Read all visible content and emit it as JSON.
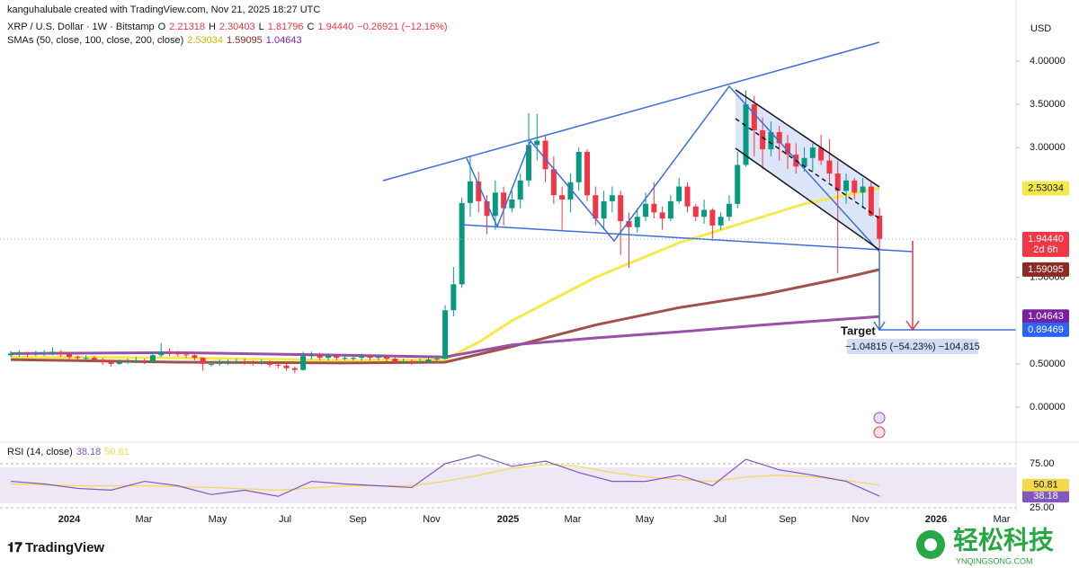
{
  "header": {
    "credit": "kanguhalubale created with TradingView.com, Nov 21, 2025 18:27 UTC",
    "symbol": "XRP / U.S. Dollar · 1W · Bitstamp",
    "ohlc": [
      {
        "label": "O",
        "value": "2.21318"
      },
      {
        "label": "H",
        "value": "2.30403"
      },
      {
        "label": "L",
        "value": "1.81796"
      },
      {
        "label": "C",
        "value": "1.94440"
      }
    ],
    "change": "−0.26921 (−12.16%)",
    "sma_title": "SMAs (50, close, 100, close, 200, close)",
    "currency": "USD"
  },
  "annotations": {
    "target": "Target",
    "measure": "−1.04815 (−54.23%) −104,815"
  },
  "footer": {
    "brand": "TradingView",
    "watermark": "轻松科技",
    "watermark_url": "YNQINGSONG.COM"
  },
  "chart_data": {
    "type": "candlestick",
    "ylim": [
      -0.384,
      4.706
    ],
    "yticks": [
      {
        "value": 4,
        "label": "4.00000"
      },
      {
        "value": 3.5,
        "label": "3.50000"
      },
      {
        "value": 3,
        "label": "3.00000"
      },
      {
        "value": 1.5,
        "label": "1.50000"
      },
      {
        "value": 0.5,
        "label": "0.50000"
      },
      {
        "value": 0,
        "label": "0.00000"
      }
    ],
    "x_labels": [
      "2024",
      "Mar",
      "May",
      "Jul",
      "Sep",
      "Nov",
      "2025",
      "Mar",
      "May",
      "Jul",
      "Sep",
      "Nov",
      "2026",
      "Mar"
    ],
    "up_color": "#089981",
    "down_color": "#f23645",
    "open": [
      0.6,
      0.62,
      0.62,
      0.61,
      0.62,
      0.62,
      0.64,
      0.61,
      0.58,
      0.57,
      0.57,
      0.55,
      0.52,
      0.5,
      0.52,
      0.53,
      0.54,
      0.53,
      0.6,
      0.64,
      0.63,
      0.61,
      0.6,
      0.57,
      0.5,
      0.5,
      0.52,
      0.52,
      0.53,
      0.52,
      0.51,
      0.52,
      0.49,
      0.48,
      0.45,
      0.43,
      0.59,
      0.6,
      0.57,
      0.59,
      0.57,
      0.57,
      0.57,
      0.59,
      0.57,
      0.58,
      0.56,
      0.53,
      0.53,
      0.52,
      0.53,
      0.55,
      0.56,
      1.12,
      1.42,
      2.36,
      2.61,
      2.38,
      2.21,
      2.48,
      2.3,
      2.4,
      2.62,
      3.03,
      3.08,
      2.75,
      2.45,
      2.4,
      2.6,
      2.95,
      2.45,
      2.18,
      2.38,
      2.45,
      2.15,
      2.08,
      2.2,
      2.35,
      2.25,
      2.18,
      2.38,
      2.55,
      2.32,
      2.2,
      2.28,
      2.1,
      2.2,
      2.35,
      2.8,
      3.5,
      3.2,
      2.98,
      3.18,
      3.05,
      2.92,
      2.78,
      2.88,
      3.0,
      2.85,
      2.7,
      2.5,
      2.62,
      2.48,
      2.55,
      2.21318
    ],
    "high": [
      0.65,
      0.66,
      0.64,
      0.65,
      0.66,
      0.69,
      0.66,
      0.63,
      0.6,
      0.6,
      0.59,
      0.57,
      0.54,
      0.55,
      0.56,
      0.58,
      0.56,
      0.64,
      0.74,
      0.68,
      0.65,
      0.63,
      0.62,
      0.58,
      0.53,
      0.55,
      0.55,
      0.56,
      0.56,
      0.54,
      0.55,
      0.54,
      0.51,
      0.5,
      0.47,
      0.64,
      0.64,
      0.63,
      0.62,
      0.61,
      0.61,
      0.61,
      0.62,
      0.61,
      0.61,
      0.6,
      0.58,
      0.56,
      0.55,
      0.56,
      0.58,
      0.6,
      1.18,
      1.62,
      2.42,
      2.91,
      2.72,
      2.45,
      2.62,
      2.55,
      2.5,
      2.7,
      3.4,
      3.39,
      3.15,
      2.9,
      2.55,
      2.7,
      3.0,
      2.98,
      2.55,
      2.5,
      2.55,
      2.5,
      2.25,
      2.3,
      2.48,
      2.6,
      2.32,
      2.45,
      2.65,
      2.6,
      2.35,
      2.4,
      2.3,
      2.25,
      2.45,
      2.95,
      3.66,
      3.6,
      3.35,
      3.3,
      3.25,
      3.15,
      3.05,
      3.0,
      3.05,
      3.15,
      3.1,
      2.85,
      2.7,
      2.65,
      2.65,
      2.6,
      2.30403
    ],
    "low": [
      0.58,
      0.58,
      0.58,
      0.59,
      0.59,
      0.6,
      0.58,
      0.55,
      0.54,
      0.54,
      0.52,
      0.49,
      0.47,
      0.49,
      0.5,
      0.51,
      0.5,
      0.51,
      0.58,
      0.59,
      0.58,
      0.57,
      0.54,
      0.42,
      0.47,
      0.48,
      0.49,
      0.5,
      0.49,
      0.48,
      0.49,
      0.46,
      0.45,
      0.42,
      0.39,
      0.42,
      0.55,
      0.54,
      0.54,
      0.54,
      0.54,
      0.54,
      0.54,
      0.54,
      0.54,
      0.53,
      0.5,
      0.5,
      0.49,
      0.5,
      0.51,
      0.53,
      0.55,
      1.05,
      1.38,
      2.2,
      2.25,
      2.0,
      2.05,
      2.1,
      2.25,
      2.3,
      2.55,
      2.85,
      2.6,
      2.35,
      2.05,
      2.25,
      2.5,
      2.38,
      2.1,
      2.05,
      2.25,
      1.76,
      1.61,
      2.02,
      2.15,
      2.18,
      2.05,
      2.15,
      2.35,
      2.25,
      2.15,
      2.12,
      1.92,
      2.05,
      2.15,
      2.3,
      2.78,
      2.9,
      2.75,
      2.9,
      2.85,
      2.75,
      2.7,
      2.72,
      2.72,
      2.8,
      2.6,
      1.55,
      2.35,
      2.4,
      2.3,
      2.2,
      1.81796
    ],
    "close": [
      0.62,
      0.62,
      0.61,
      0.62,
      0.62,
      0.64,
      0.61,
      0.58,
      0.57,
      0.57,
      0.55,
      0.52,
      0.5,
      0.52,
      0.53,
      0.54,
      0.53,
      0.6,
      0.64,
      0.63,
      0.61,
      0.6,
      0.57,
      0.5,
      0.5,
      0.52,
      0.52,
      0.53,
      0.52,
      0.51,
      0.52,
      0.49,
      0.48,
      0.45,
      0.43,
      0.59,
      0.6,
      0.57,
      0.59,
      0.57,
      0.57,
      0.57,
      0.59,
      0.57,
      0.58,
      0.56,
      0.53,
      0.53,
      0.52,
      0.53,
      0.55,
      0.56,
      1.12,
      1.42,
      2.36,
      2.61,
      2.38,
      2.21,
      2.48,
      2.3,
      2.4,
      2.62,
      3.03,
      3.08,
      2.75,
      2.45,
      2.4,
      2.6,
      2.95,
      2.45,
      2.18,
      2.38,
      2.45,
      2.15,
      2.08,
      2.2,
      2.35,
      2.25,
      2.18,
      2.38,
      2.55,
      2.32,
      2.2,
      2.28,
      2.1,
      2.2,
      2.35,
      2.8,
      3.5,
      3.2,
      2.98,
      3.18,
      3.05,
      2.92,
      2.78,
      2.88,
      3.0,
      2.85,
      2.7,
      2.5,
      2.62,
      2.48,
      2.55,
      2.21318,
      1.9444
    ],
    "sma": [
      {
        "color": "#f5e94a",
        "x": [
          0,
          20,
          40,
          52,
          56,
          60,
          65,
          70,
          75,
          80,
          85,
          90,
          95,
          100,
          104
        ],
        "values": [
          0.58,
          0.57,
          0.54,
          0.55,
          0.75,
          1.0,
          1.25,
          1.5,
          1.7,
          1.9,
          2.05,
          2.2,
          2.35,
          2.45,
          2.53034
        ]
      },
      {
        "color": "#a0524b",
        "x": [
          0,
          20,
          40,
          52,
          60,
          70,
          80,
          90,
          100,
          104
        ],
        "values": [
          0.55,
          0.52,
          0.51,
          0.52,
          0.7,
          0.95,
          1.15,
          1.3,
          1.5,
          1.59095
        ]
      },
      {
        "color": "#9c4fa8",
        "x": [
          0,
          20,
          40,
          52,
          60,
          70,
          80,
          90,
          100,
          104
        ],
        "values": [
          0.62,
          0.63,
          0.6,
          0.58,
          0.72,
          0.8,
          0.87,
          0.95,
          1.02,
          1.04643
        ]
      }
    ],
    "price_labels": [
      {
        "value": 2.53034,
        "label": "2.53034",
        "color": "#f5e94a",
        "text_color": "#131722"
      },
      {
        "value": 1.9444,
        "label": "1.94440",
        "extra": "2d 6h",
        "color": "#f23645",
        "text_color": "#ffffff"
      },
      {
        "value": 1.59095,
        "label": "1.59095",
        "color": "#8c2a23",
        "text_color": "#ffffff"
      },
      {
        "value": 1.04643,
        "label": "1.04643",
        "color": "#7b1fa2",
        "text_color": "#ffffff"
      },
      {
        "value": 0.89469,
        "label": "0.89469",
        "color": "#2962ff",
        "text_color": "#ffffff"
      }
    ],
    "rsi": {
      "title": "RSI (14, close)",
      "ylim": [
        19.9,
        96.4
      ],
      "yticks": [
        {
          "value": 75,
          "label": "75.00"
        },
        {
          "value": 25,
          "label": "25.00"
        }
      ],
      "color": "#7e57c2",
      "ma_color": "#f5d94a",
      "x": [
        0,
        4,
        8,
        12,
        16,
        20,
        24,
        28,
        32,
        36,
        40,
        44,
        48,
        52,
        56,
        60,
        64,
        68,
        72,
        76,
        80,
        84,
        88,
        92,
        96,
        100,
        104
      ],
      "values": [
        55,
        52,
        47,
        45,
        55,
        50,
        40,
        45,
        38,
        55,
        52,
        50,
        48,
        75,
        85,
        72,
        78,
        65,
        55,
        55,
        62,
        50,
        80,
        68,
        62,
        55,
        38.18
      ],
      "ma_x": [
        0,
        8,
        16,
        24,
        32,
        40,
        48,
        52,
        56,
        60,
        64,
        68,
        72,
        76,
        80,
        84,
        88,
        92,
        96,
        100,
        104
      ],
      "ma_values": [
        52,
        50,
        50,
        48,
        45,
        50,
        50,
        55,
        62,
        70,
        74,
        72,
        65,
        60,
        57,
        55,
        60,
        62,
        60,
        56,
        50.81
      ],
      "labels": [
        {
          "value": 38.18,
          "label": "38.18",
          "color": "#7e57c2"
        },
        {
          "value": 50.81,
          "label": "50.81",
          "color": "#f5d94a"
        }
      ]
    }
  }
}
